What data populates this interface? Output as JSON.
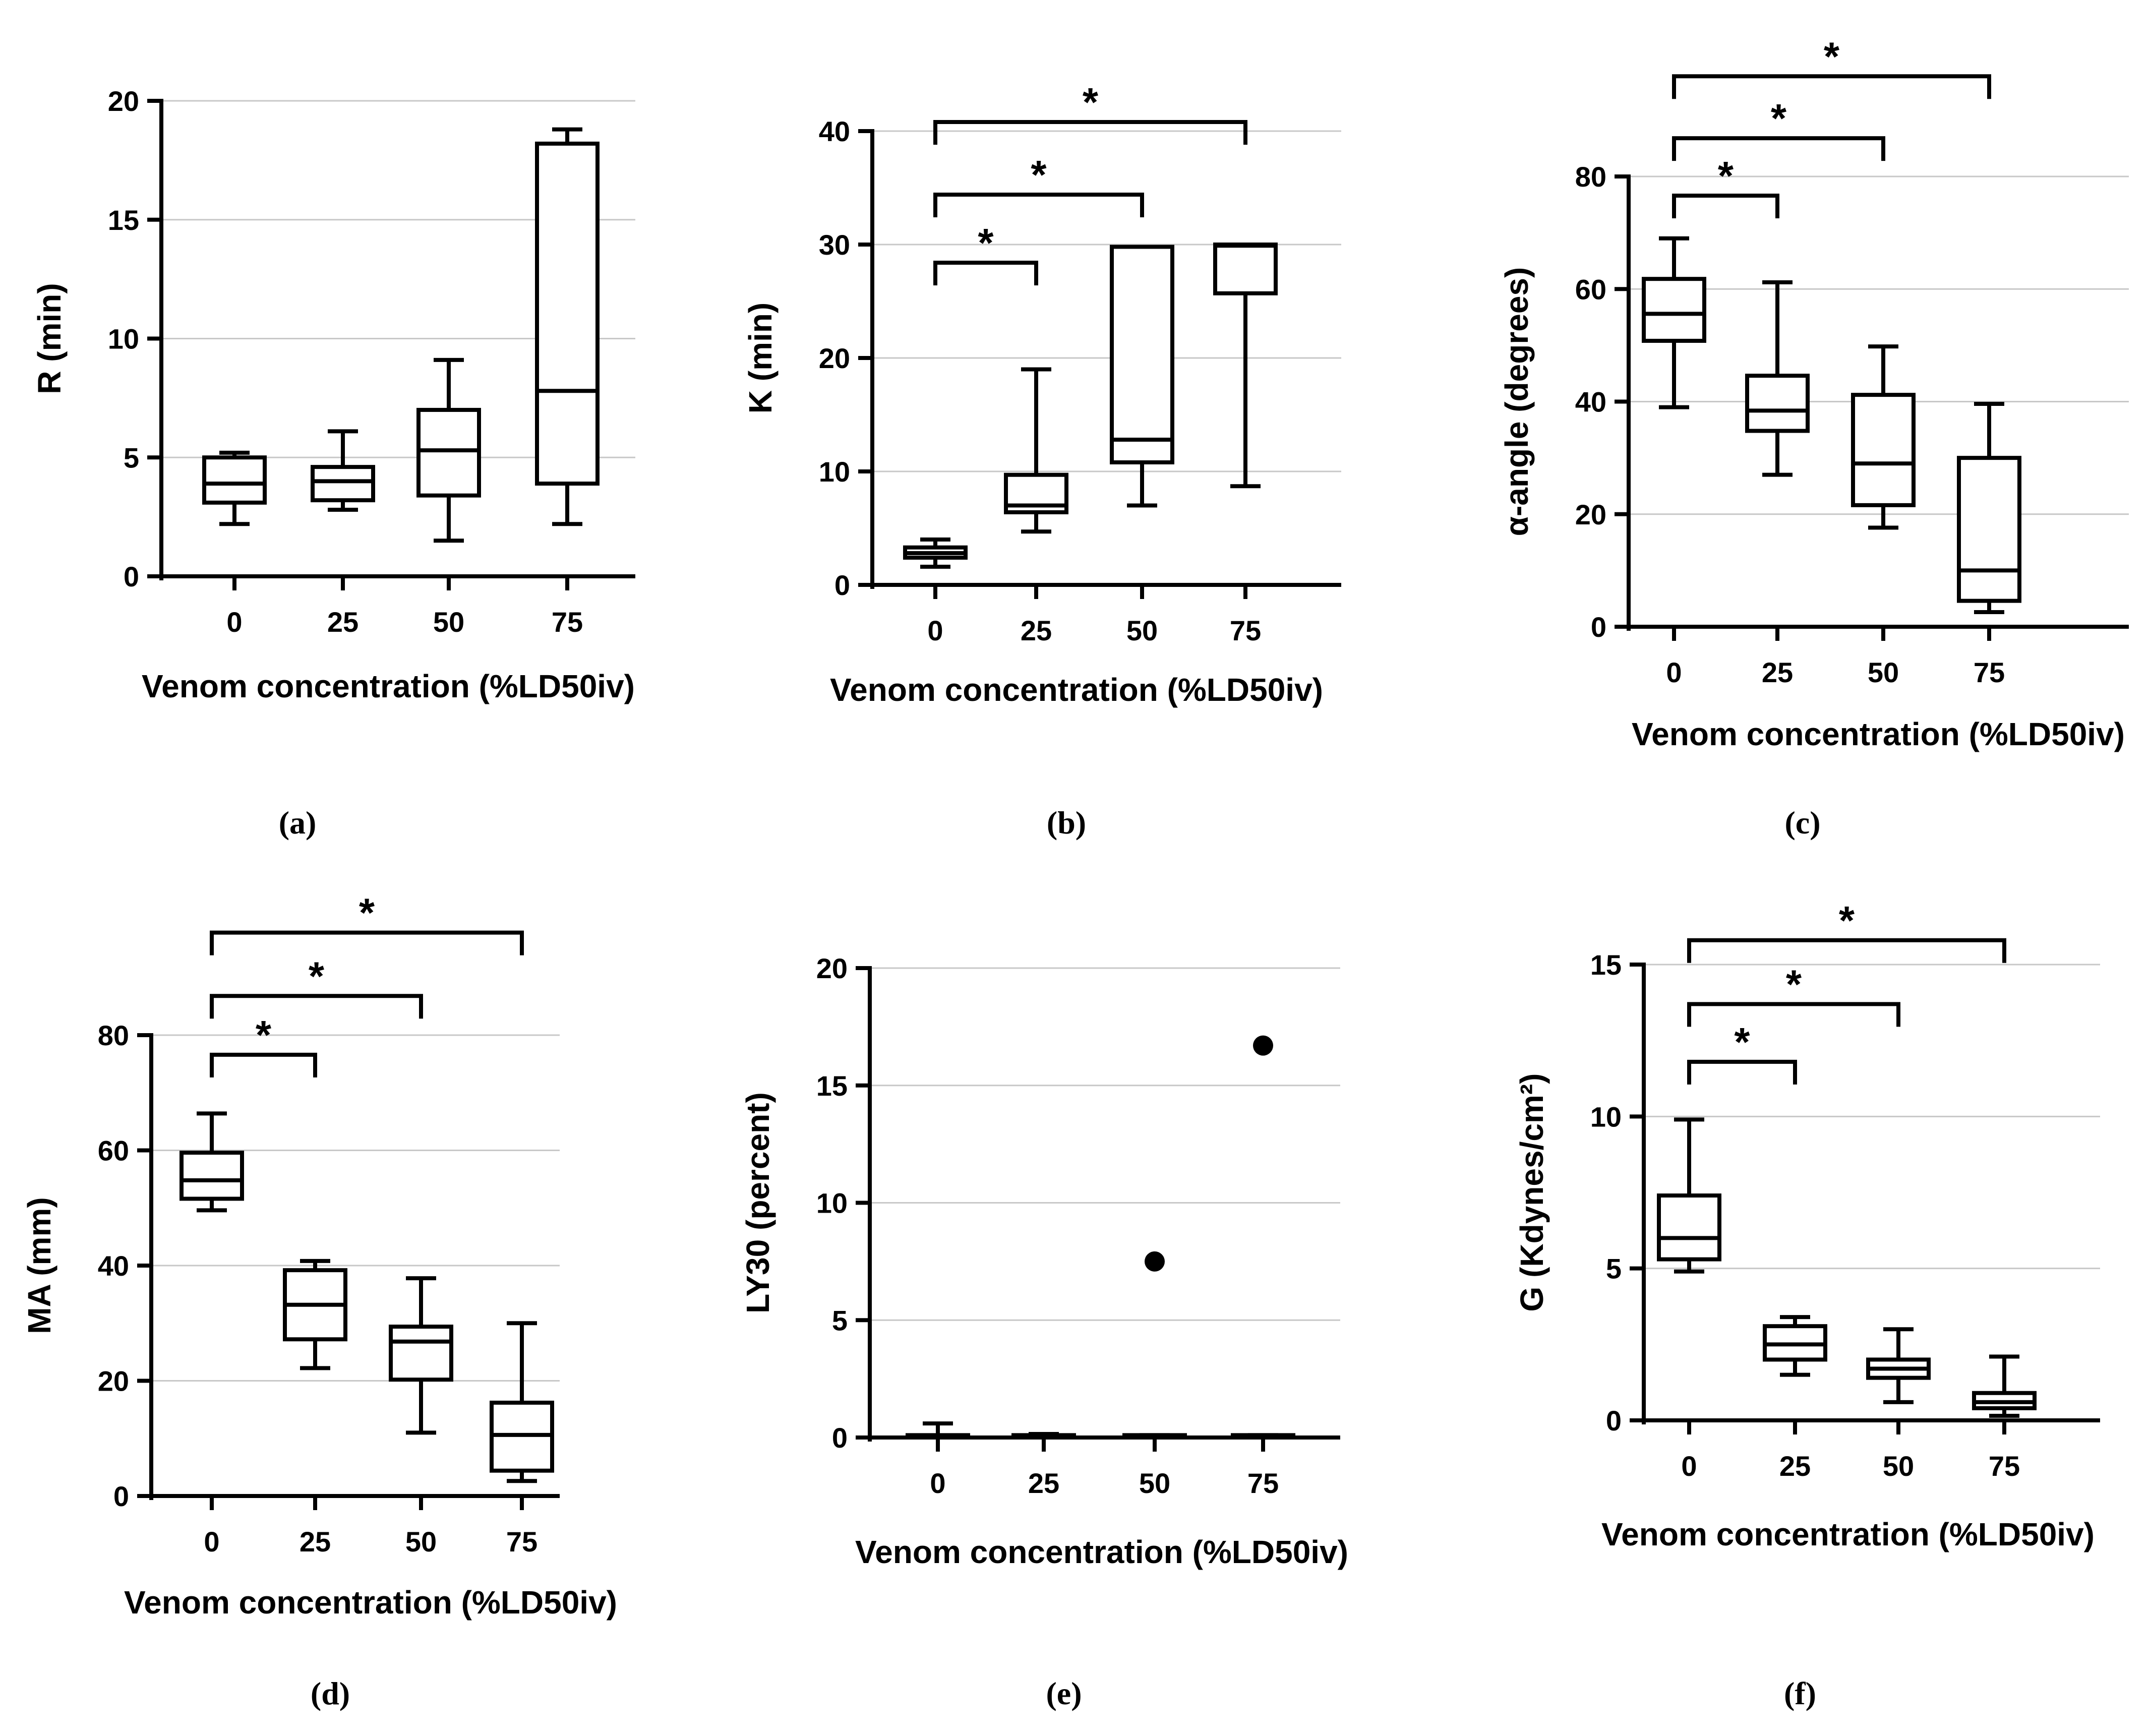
{
  "chart_data": [
    {
      "type": "box",
      "panel_label": "(a)",
      "ylabel": "R (min)",
      "xlabel": "Venom concentration (%LD50iv)",
      "categories": [
        "0",
        "25",
        "50",
        "75"
      ],
      "ylim": [
        0,
        20
      ],
      "yticks": [
        0,
        5,
        10,
        15,
        20
      ],
      "ytick_labels": [
        "0",
        "5",
        "10",
        "15",
        "20"
      ],
      "grid": "horizontal",
      "boxes": [
        {
          "min": 2.2,
          "q1": 3.1,
          "median": 3.9,
          "q3": 5.0,
          "max": 5.2
        },
        {
          "min": 2.8,
          "q1": 3.2,
          "median": 4.0,
          "q3": 4.6,
          "max": 6.1
        },
        {
          "min": 1.5,
          "q1": 3.4,
          "median": 5.3,
          "q3": 7.0,
          "max": 9.1
        },
        {
          "min": 2.2,
          "q1": 3.9,
          "median": 7.8,
          "q3": 18.2,
          "max": 18.8
        }
      ],
      "outliers": [],
      "significance": []
    },
    {
      "type": "box",
      "panel_label": "(b)",
      "ylabel": "K  (min)",
      "xlabel": "Venom concentration (%LD50iv)",
      "categories": [
        "0",
        "25",
        "50",
        "75"
      ],
      "ylim": [
        0,
        40
      ],
      "yticks": [
        0,
        10,
        20,
        30,
        40
      ],
      "ytick_labels": [
        "0",
        "10",
        "20",
        "30",
        "40"
      ],
      "grid": "horizontal",
      "boxes": [
        {
          "min": 1.6,
          "q1": 2.4,
          "median": 2.8,
          "q3": 3.3,
          "max": 4.0
        },
        {
          "min": 4.7,
          "q1": 6.4,
          "median": 7.0,
          "q3": 9.7,
          "max": 19.0
        },
        {
          "min": 7.0,
          "q1": 10.8,
          "median": 12.8,
          "q3": 29.8,
          "max": 29.8
        },
        {
          "min": 8.7,
          "q1": 25.7,
          "median": 29.9,
          "q3": 30.0,
          "max": 30.0
        }
      ],
      "outliers": [],
      "significance": [
        {
          "from": 0,
          "to": 1,
          "label": "*",
          "level": 28.4
        },
        {
          "from": 0,
          "to": 2,
          "label": "*",
          "level": 34.4
        },
        {
          "from": 0,
          "to": 3,
          "label": "*",
          "level": 40.8
        }
      ]
    },
    {
      "type": "box",
      "panel_label": "(c)",
      "ylabel": "α-angle (degrees)",
      "xlabel": "Venom concentration (%LD50iv)",
      "categories": [
        "0",
        "25",
        "50",
        "75"
      ],
      "ylim": [
        0,
        80
      ],
      "yticks": [
        0,
        20,
        40,
        60,
        80
      ],
      "ytick_labels": [
        "0",
        "20",
        "40",
        "60",
        "80"
      ],
      "grid": "horizontal",
      "boxes": [
        {
          "min": 39.0,
          "q1": 50.8,
          "median": 55.6,
          "q3": 61.8,
          "max": 69.0
        },
        {
          "min": 27.0,
          "q1": 34.8,
          "median": 38.4,
          "q3": 44.6,
          "max": 61.2
        },
        {
          "min": 17.6,
          "q1": 21.6,
          "median": 29.0,
          "q3": 41.2,
          "max": 49.8
        },
        {
          "min": 2.6,
          "q1": 4.6,
          "median": 10.0,
          "q3": 30.0,
          "max": 39.6
        }
      ],
      "outliers": [],
      "significance": [
        {
          "from": 0,
          "to": 1,
          "label": "*",
          "level": 76.6
        },
        {
          "from": 0,
          "to": 2,
          "label": "*",
          "level": 86.8
        },
        {
          "from": 0,
          "to": 3,
          "label": "*",
          "level": 97.8
        }
      ]
    },
    {
      "type": "box",
      "panel_label": "(d)",
      "ylabel": "MA (mm)",
      "xlabel": "Venom concentration (%LD50iv)",
      "categories": [
        "0",
        "25",
        "50",
        "75"
      ],
      "ylim": [
        0,
        80
      ],
      "yticks": [
        0,
        20,
        40,
        60,
        80
      ],
      "ytick_labels": [
        "0",
        "20",
        "40",
        "60",
        "80"
      ],
      "grid": "horizontal",
      "boxes": [
        {
          "min": 49.6,
          "q1": 51.6,
          "median": 54.8,
          "q3": 59.6,
          "max": 66.4
        },
        {
          "min": 22.2,
          "q1": 27.2,
          "median": 33.2,
          "q3": 39.2,
          "max": 40.8
        },
        {
          "min": 11.0,
          "q1": 20.2,
          "median": 26.8,
          "q3": 29.4,
          "max": 37.8
        },
        {
          "min": 2.6,
          "q1": 4.4,
          "median": 10.6,
          "q3": 16.2,
          "max": 30.0
        }
      ],
      "outliers": [],
      "significance": [
        {
          "from": 0,
          "to": 1,
          "label": "*",
          "level": 76.6
        },
        {
          "from": 0,
          "to": 2,
          "label": "*",
          "level": 86.8
        },
        {
          "from": 0,
          "to": 3,
          "label": "*",
          "level": 97.8
        }
      ]
    },
    {
      "type": "box",
      "panel_label": "(e)",
      "ylabel": "LY30 (percent)",
      "xlabel": "Venom concentration (%LD50iv)",
      "categories": [
        "0",
        "25",
        "50",
        "75"
      ],
      "ylim": [
        0,
        20
      ],
      "yticks": [
        0,
        5,
        10,
        15,
        20
      ],
      "ytick_labels": [
        "0",
        "5",
        "10",
        "15",
        "20"
      ],
      "grid": "horizontal",
      "boxes": [
        {
          "min": 0.0,
          "q1": 0.0,
          "median": 0.05,
          "q3": 0.1,
          "max": 0.6
        },
        {
          "min": 0.0,
          "q1": 0.0,
          "median": 0.05,
          "q3": 0.1,
          "max": 0.15
        },
        {
          "min": 0.0,
          "q1": 0.0,
          "median": 0.05,
          "q3": 0.1,
          "max": 0.1
        },
        {
          "min": 0.0,
          "q1": 0.0,
          "median": 0.05,
          "q3": 0.1,
          "max": 0.1
        }
      ],
      "outliers": [
        {
          "category": 2,
          "value": 7.5
        },
        {
          "category": 3,
          "value": 16.7
        }
      ],
      "significance": []
    },
    {
      "type": "box",
      "panel_label": "(f)",
      "ylabel": "G (Kdynes/cm²)",
      "xlabel": "Venom concentration (%LD50iv)",
      "categories": [
        "0",
        "25",
        "50",
        "75"
      ],
      "ylim": [
        0,
        15
      ],
      "yticks": [
        0,
        5,
        10,
        15
      ],
      "ytick_labels": [
        "0",
        "5",
        "10",
        "15"
      ],
      "grid": "horizontal",
      "boxes": [
        {
          "min": 4.9,
          "q1": 5.3,
          "median": 6.0,
          "q3": 7.4,
          "max": 9.9
        },
        {
          "min": 1.5,
          "q1": 2.0,
          "median": 2.5,
          "q3": 3.1,
          "max": 3.4
        },
        {
          "min": 0.6,
          "q1": 1.4,
          "median": 1.7,
          "q3": 2.0,
          "max": 3.0
        },
        {
          "min": 0.15,
          "q1": 0.4,
          "median": 0.6,
          "q3": 0.9,
          "max": 2.1
        }
      ],
      "outliers": [],
      "significance": [
        {
          "from": 0,
          "to": 1,
          "label": "*",
          "level": 11.8
        },
        {
          "from": 0,
          "to": 2,
          "label": "*",
          "level": 13.7
        },
        {
          "from": 0,
          "to": 3,
          "label": "*",
          "level": 15.8
        }
      ]
    }
  ]
}
